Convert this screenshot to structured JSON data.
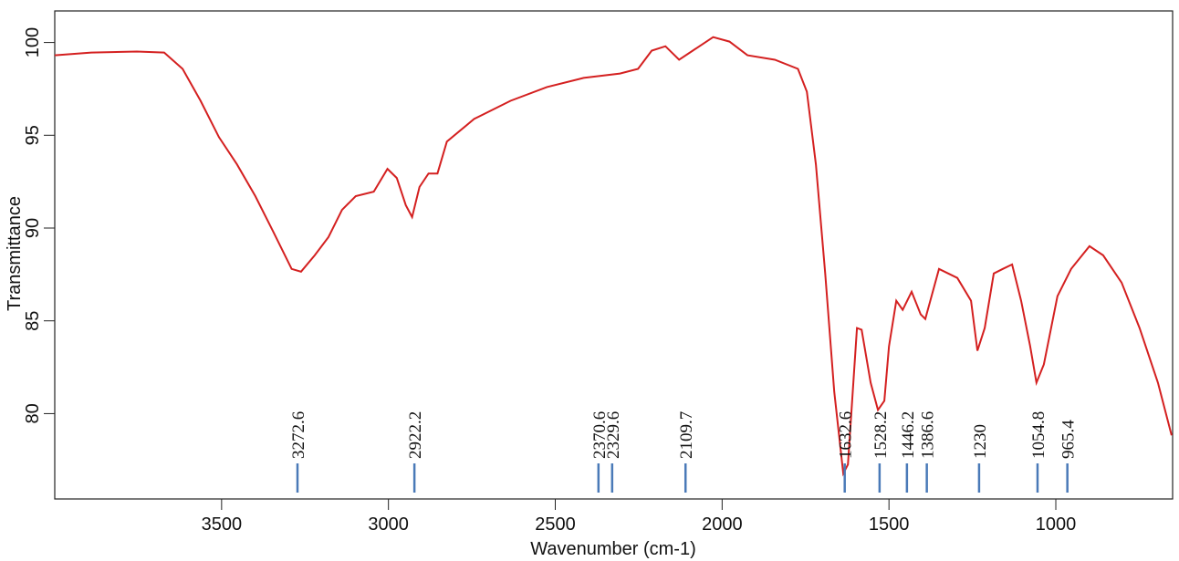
{
  "chart_data": {
    "type": "line",
    "xlabel": "Wavenumber (cm-1)",
    "ylabel": "Transmittance",
    "xlim": [
      4000,
      650
    ],
    "ylim": [
      75.4,
      101.7
    ],
    "xticks": [
      3500,
      3000,
      2500,
      2000,
      1500,
      1000
    ],
    "yticks": [
      80,
      85,
      90,
      95,
      100
    ],
    "series": [
      {
        "color": "#d42020",
        "x": [
          4000,
          3890.7,
          3754,
          3672,
          3617,
          3563,
          3508,
          3454,
          3399,
          3344,
          3290,
          3262,
          3221,
          3180,
          3139,
          3098,
          3044,
          3003,
          2975,
          2948,
          2929,
          2907,
          2880,
          2853,
          2825,
          2743,
          2634,
          2525,
          2415,
          2306,
          2252,
          2211,
          2170,
          2129,
          2088,
          2027,
          1978,
          1924,
          1842,
          1773,
          1746,
          1719,
          1691,
          1664,
          1637,
          1623,
          1596,
          1582,
          1555,
          1533,
          1514,
          1500,
          1478,
          1459,
          1432,
          1405,
          1391,
          1350,
          1295,
          1254,
          1235,
          1213,
          1186,
          1159,
          1131,
          1104,
          1077,
          1058,
          1036,
          995,
          954,
          899,
          858,
          803,
          749,
          694,
          653
        ],
        "values": [
          99.31,
          99.46,
          99.51,
          99.46,
          98.58,
          96.86,
          94.9,
          93.43,
          91.72,
          89.76,
          87.8,
          87.65,
          88.53,
          89.51,
          90.98,
          91.72,
          91.96,
          93.19,
          92.7,
          91.23,
          90.59,
          92.21,
          92.94,
          92.94,
          94.66,
          95.88,
          96.86,
          97.6,
          98.09,
          98.33,
          98.58,
          99.56,
          99.8,
          99.07,
          99.56,
          100.29,
          100.05,
          99.31,
          99.07,
          98.58,
          97.35,
          93.43,
          87.55,
          81.18,
          76.77,
          77.26,
          84.61,
          84.52,
          81.67,
          80.2,
          80.69,
          83.63,
          86.08,
          85.59,
          86.57,
          85.35,
          85.1,
          87.8,
          87.31,
          86.08,
          83.39,
          84.61,
          87.55,
          87.8,
          88.04,
          86.08,
          83.63,
          81.67,
          82.65,
          86.33,
          87.8,
          89.02,
          88.53,
          87.06,
          84.61,
          81.67,
          78.83
        ]
      }
    ],
    "peaks": [
      3272.6,
      2922.2,
      2370.6,
      2329.6,
      2109.7,
      1632.6,
      1528.2,
      1446.2,
      1386.6,
      1230,
      1054.8,
      965.4
    ],
    "peak_color": "#4a7ab8"
  }
}
